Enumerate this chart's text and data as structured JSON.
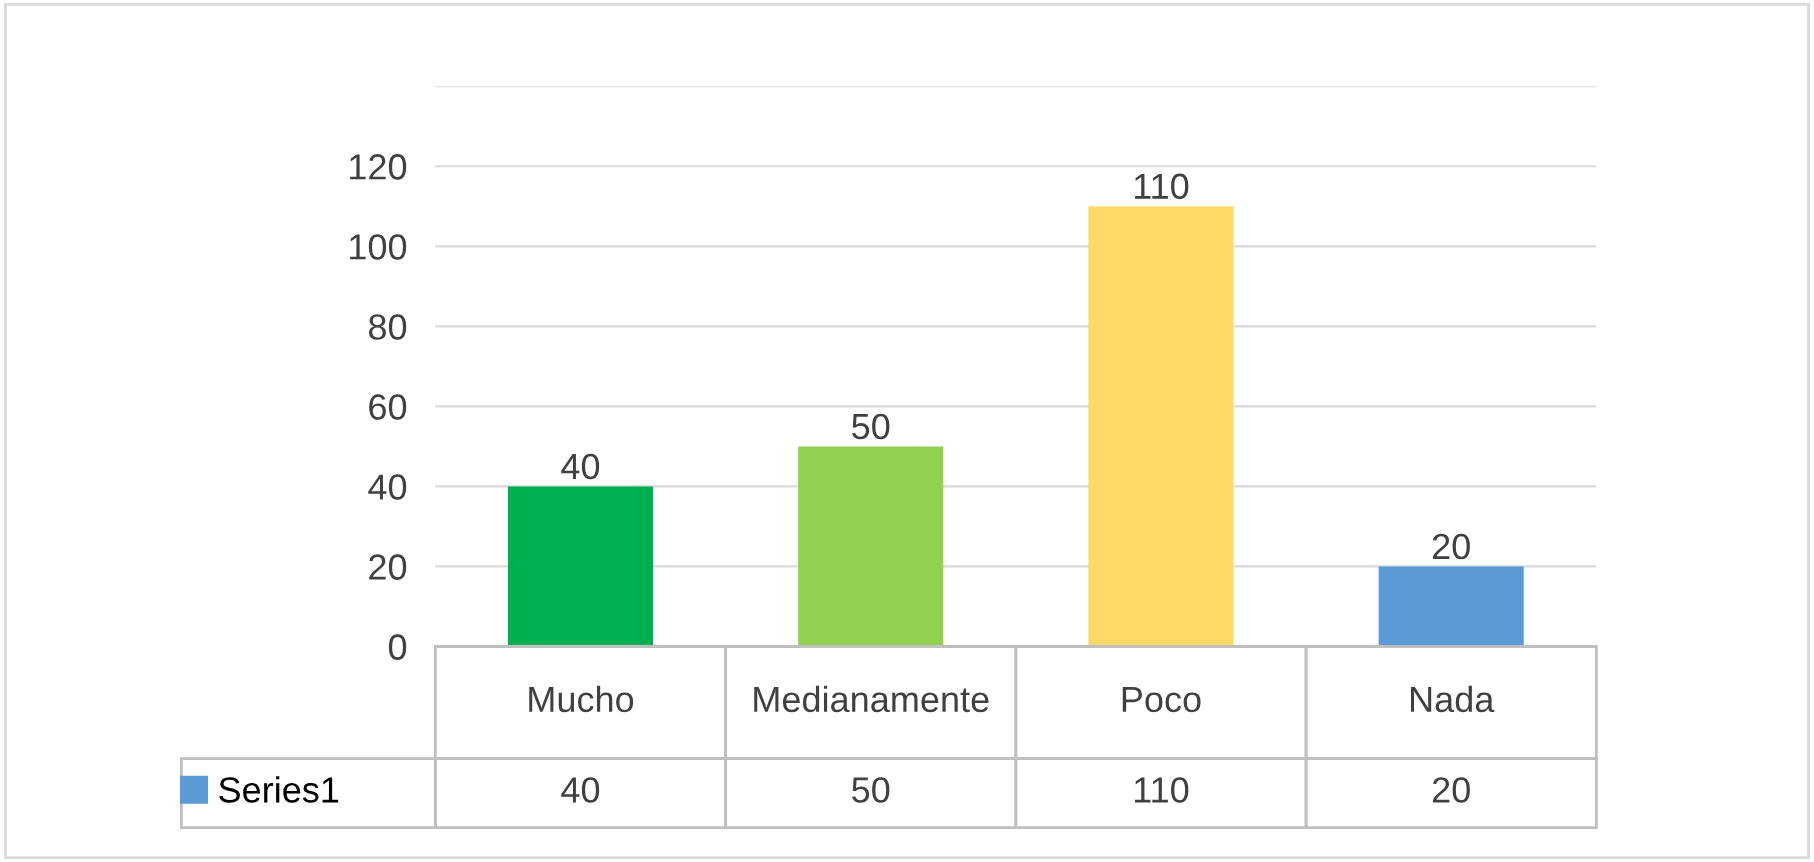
{
  "chart_data": {
    "type": "bar",
    "categories": [
      "Mucho",
      "Medianamente",
      "Poco",
      "Nada"
    ],
    "series": [
      {
        "name": "Series1",
        "color": "#5b9bd5",
        "colors": [
          "#00b050",
          "#92d050",
          "#ffd966",
          "#5b9bd5"
        ],
        "values": [
          40,
          50,
          110,
          20
        ],
        "value_labels": [
          "40",
          "50",
          "110",
          "20"
        ]
      }
    ],
    "ylim": [
      0,
      140
    ],
    "yticks": [
      0,
      20,
      40,
      60,
      80,
      100,
      120,
      {
        "value": 140,
        "label": null
      }
    ],
    "annotations": [
      "40",
      "50",
      "110",
      "20"
    ],
    "grid": "y",
    "legend": "bottom"
  }
}
